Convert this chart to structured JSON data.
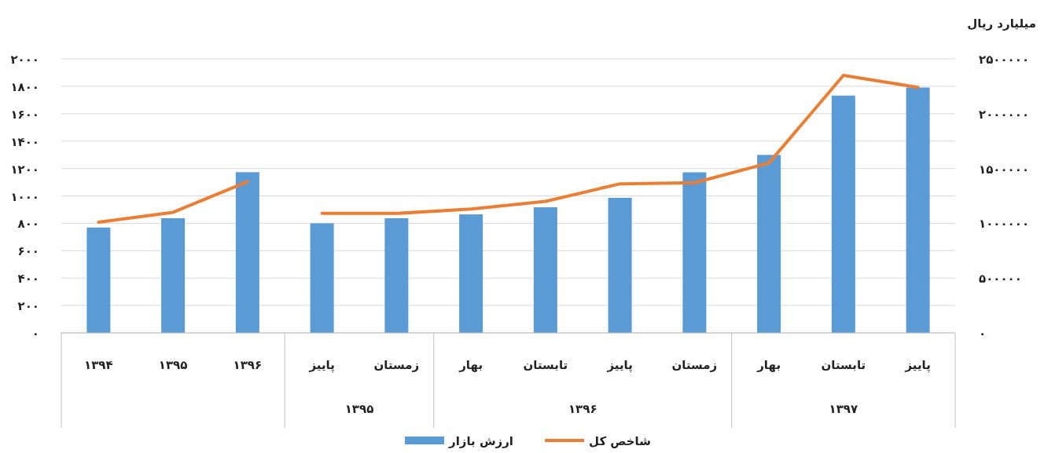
{
  "chart_data": {
    "type": "bar",
    "y2label": "میلیارد ریال",
    "categories": [
      "۱۳۹۴",
      "۱۳۹۵",
      "۱۳۹۶",
      "پاییز",
      "زمستان",
      "بهار",
      "تابستان",
      "پاییز",
      "زمستان",
      "بهار",
      "تابستان",
      "پاییز"
    ],
    "series": [
      {
        "name": "ارزش بازار",
        "color": "#5b9bd5",
        "values": [
          769,
          837,
          1173,
          800,
          837,
          865,
          917,
          986,
          1172,
          1299,
          1732,
          1791
        ]
      },
      {
        "name": "شاخص کل",
        "type": "line",
        "axis": "y2",
        "color": "#ed7d31",
        "values": [
          1010000,
          1100000,
          1380000,
          null,
          null,
          null,
          null,
          null,
          null,
          null,
          null,
          null
        ]
      },
      {
        "type": "line",
        "axis": "y2",
        "color": "#ed7d31",
        "values": [
          null,
          null,
          null,
          1090000,
          1090000,
          1130000,
          1200000,
          1360000,
          1370000,
          1550000,
          2350000,
          2240000
        ]
      }
    ],
    "annotations": [
      "۱۳۹۵",
      "۱۳۹۶",
      "۱۳۹۷"
    ],
    "ylim": [
      0,
      2000
    ],
    "yticks": [
      {
        "value": 0,
        "label": "۰"
      },
      {
        "value": 200,
        "label": "۲۰۰"
      },
      {
        "value": 400,
        "label": "۴۰۰"
      },
      {
        "value": 600,
        "label": "۶۰۰"
      },
      {
        "value": 800,
        "label": "۸۰۰"
      },
      {
        "value": 1000,
        "label": "۱۰۰۰"
      },
      {
        "value": 1200,
        "label": "۱۲۰۰"
      },
      {
        "value": 1400,
        "label": "۱۴۰۰"
      },
      {
        "value": 1600,
        "label": "۱۶۰۰"
      },
      {
        "value": 1800,
        "label": "۱۸۰۰"
      },
      {
        "value": 2000,
        "label": "۲۰۰۰"
      }
    ],
    "y2lim": [
      0,
      2500000
    ],
    "y2ticks": [
      {
        "value": 0,
        "label": "۰"
      },
      {
        "value": 500000,
        "label": "۵۰۰۰۰۰"
      },
      {
        "value": 1000000,
        "label": "۱۰۰۰۰۰۰"
      },
      {
        "value": 1500000,
        "label": "۱۵۰۰۰۰۰"
      },
      {
        "value": 2000000,
        "label": "۲۰۰۰۰۰۰"
      },
      {
        "value": 2500000,
        "label": "۲۵۰۰۰۰۰"
      }
    ],
    "grid": "y",
    "legend": "bottom"
  }
}
